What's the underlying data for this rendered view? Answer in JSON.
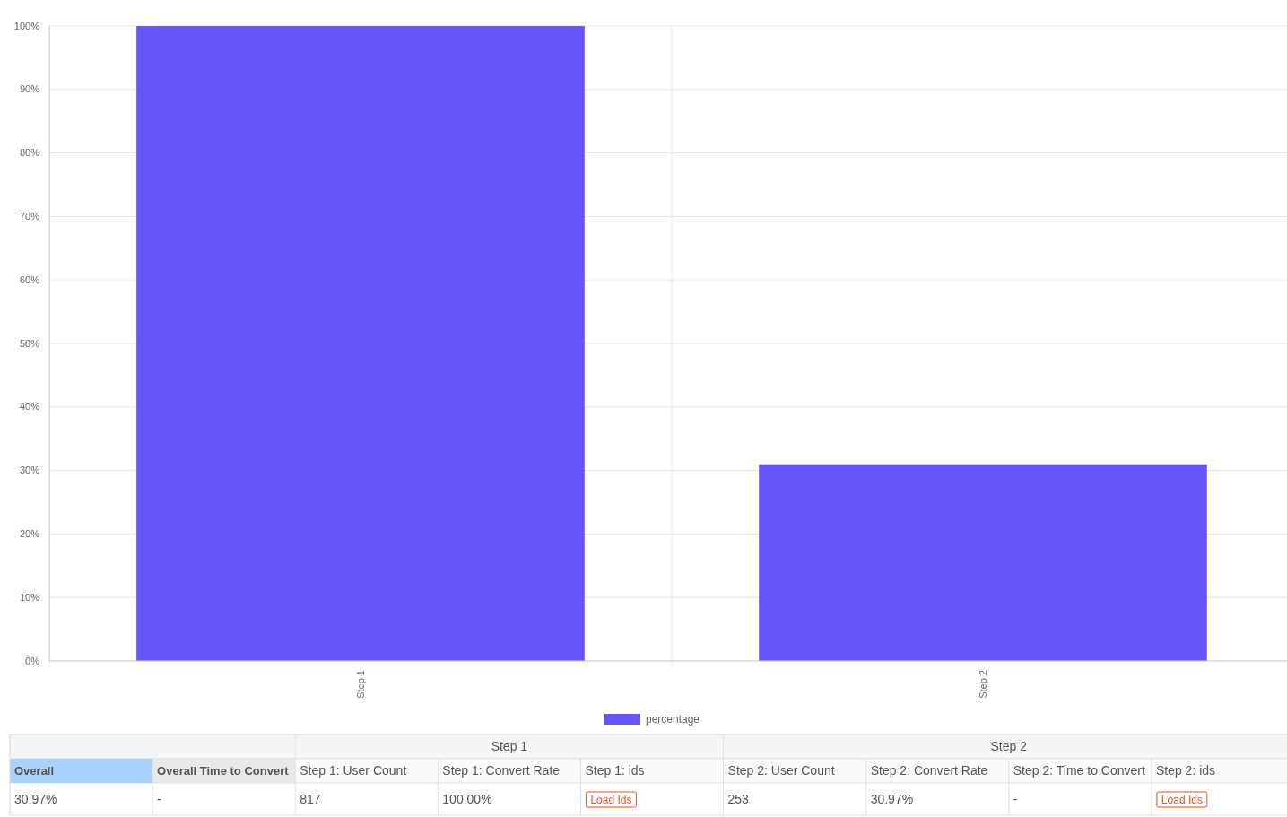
{
  "chart_data": {
    "type": "bar",
    "categories": [
      "Step 1",
      "Step 2"
    ],
    "series": [
      {
        "name": "percentage",
        "color": "#6655f9",
        "values": [
          100,
          30.97
        ]
      }
    ],
    "ylim": [
      0,
      100
    ],
    "yticks": [
      {
        "value": 0,
        "label": "0%"
      },
      {
        "value": 10,
        "label": "10%"
      },
      {
        "value": 20,
        "label": "20%"
      },
      {
        "value": 30,
        "label": "30%"
      },
      {
        "value": 40,
        "label": "40%"
      },
      {
        "value": 50,
        "label": "50%"
      },
      {
        "value": 60,
        "label": "60%"
      },
      {
        "value": 70,
        "label": "70%"
      },
      {
        "value": 80,
        "label": "80%"
      },
      {
        "value": 90,
        "label": "90%"
      },
      {
        "value": 100,
        "label": "100%"
      }
    ],
    "grid": true,
    "legend": "bottom",
    "annotations": [
      "Step 1",
      "Step 2",
      "Overall",
      "Overall Time to Convert",
      "Step 1: User Count",
      "Step 1: Convert Rate",
      "Step 1: ids",
      "Step 2: User Count",
      "Step 2: Convert Rate",
      "Step 2: Time to Convert",
      "Step 2: ids",
      "30.97%",
      "-",
      "817",
      "100.00%",
      "Load Ids",
      "253",
      "30.97%",
      "-",
      "Load Ids"
    ]
  }
}
